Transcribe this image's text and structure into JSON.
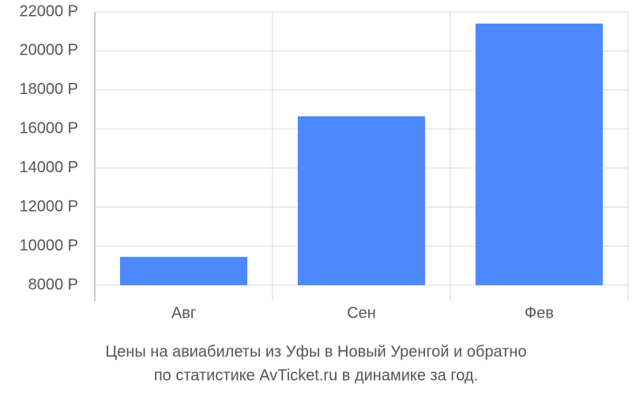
{
  "chart_data": {
    "type": "bar",
    "title": "Цены на авиабилеты из Уфы в Новый Уренгой и обратно",
    "subtitle": "по статистике AvTicket.ru в динамике за год.",
    "categories": [
      "Авг",
      "Сен",
      "Фев"
    ],
    "values": [
      9450,
      16650,
      21400
    ],
    "color": "#4d88fd",
    "ylim": [
      8000,
      22000
    ],
    "yticks": [
      {
        "value": 8000,
        "label": "8000 Р"
      },
      {
        "value": 10000,
        "label": "10000 Р"
      },
      {
        "value": 12000,
        "label": "12000 Р"
      },
      {
        "value": 14000,
        "label": "14000 Р"
      },
      {
        "value": 16000,
        "label": "16000 Р"
      },
      {
        "value": 18000,
        "label": "18000 Р"
      },
      {
        "value": 20000,
        "label": "20000 Р"
      },
      {
        "value": 22000,
        "label": "22000 Р"
      }
    ],
    "grid": true
  }
}
